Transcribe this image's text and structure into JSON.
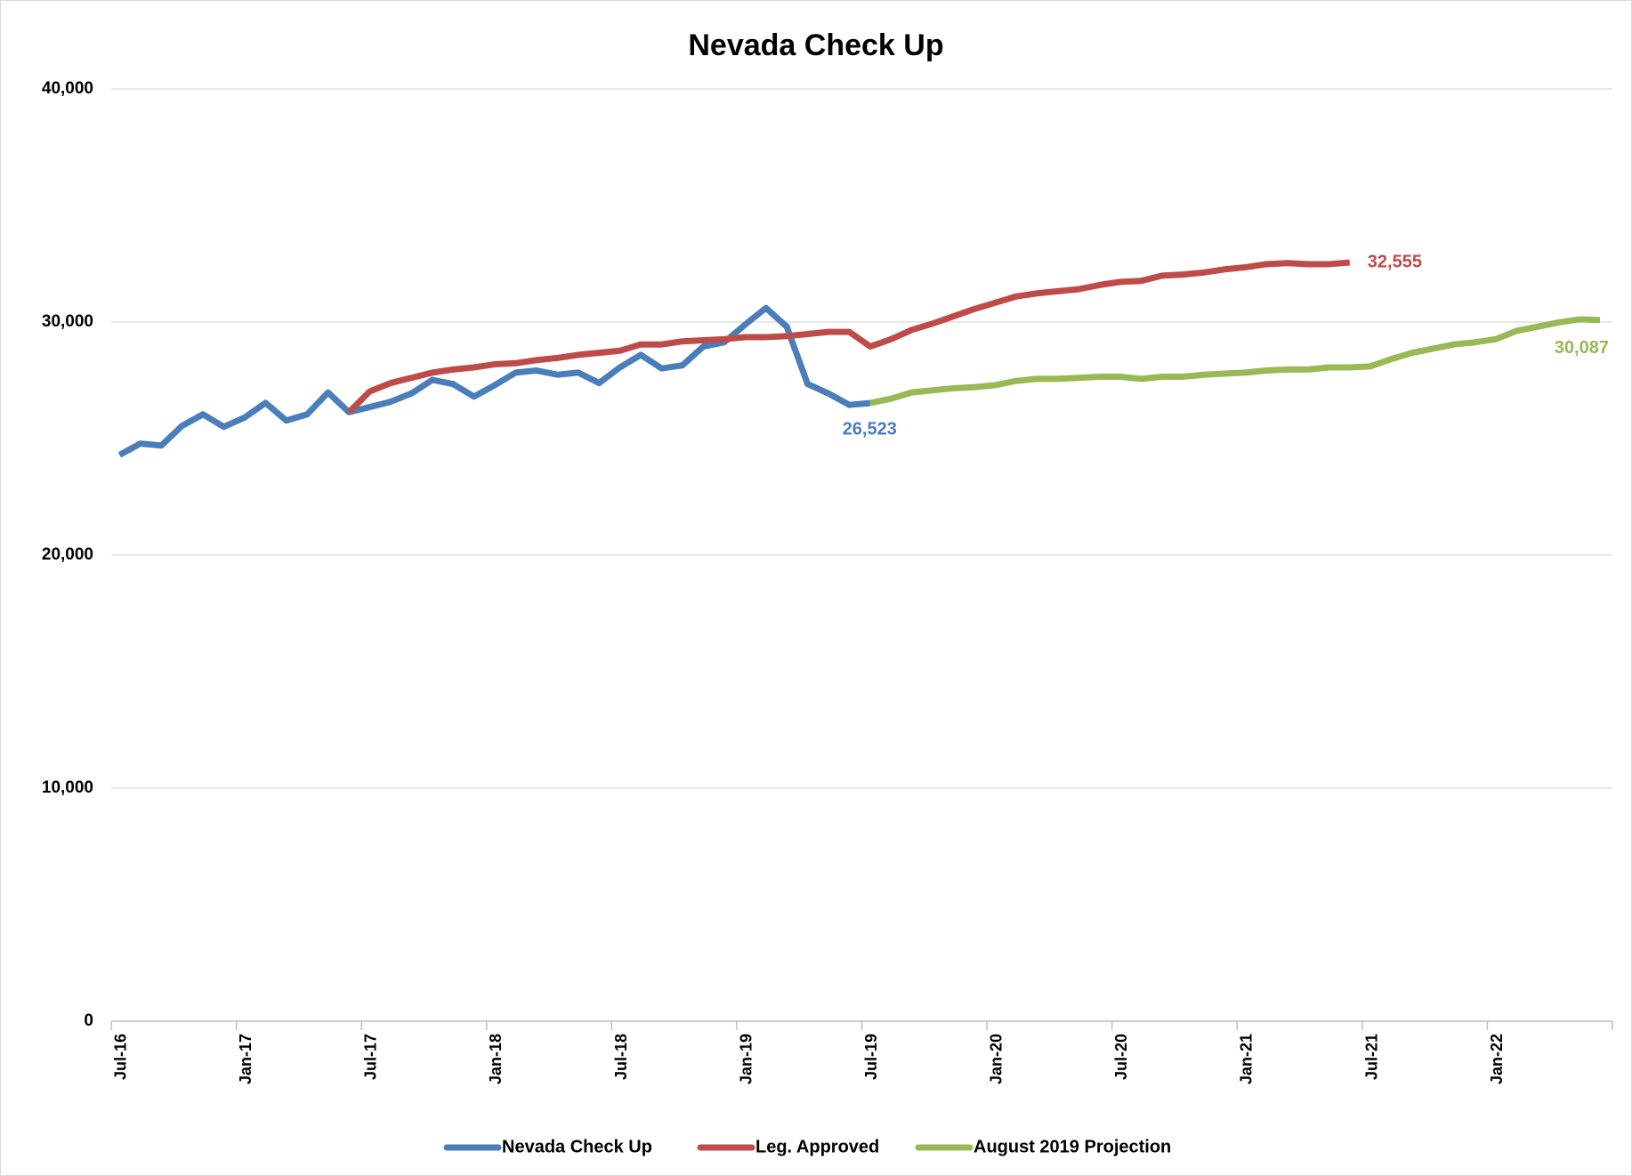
{
  "chart_data": {
    "type": "line",
    "title": "Nevada Check Up",
    "categories": [
      "Jul-16",
      null,
      null,
      null,
      null,
      null,
      "Jan-17",
      null,
      null,
      null,
      null,
      null,
      "Jul-17",
      null,
      null,
      null,
      null,
      null,
      "Jan-18",
      null,
      null,
      null,
      null,
      null,
      "Jul-18",
      null,
      null,
      null,
      null,
      null,
      "Jan-19",
      null,
      null,
      null,
      null,
      null,
      "Jul-19",
      null,
      null,
      null,
      null,
      null,
      "Jan-20",
      null,
      null,
      null,
      null,
      null,
      "Jul-20",
      null,
      null,
      null,
      null,
      null,
      "Jan-21",
      null,
      null,
      null,
      null,
      null,
      "Jul-21",
      null,
      null,
      null,
      null,
      null,
      "Jan-22",
      null,
      null,
      null,
      null,
      null
    ],
    "series": [
      {
        "name": "Nevada Check Up",
        "color": "#4a7ebb",
        "values": [
          24295,
          24787,
          24698,
          25548,
          26040,
          25503,
          25906,
          26532,
          25772,
          26040,
          26980,
          26130,
          26353,
          26577,
          26935,
          27517,
          27338,
          26801,
          27293,
          27830,
          27919,
          27740,
          27830,
          27383,
          28054,
          28591,
          28009,
          28143,
          28949,
          29128,
          29888,
          30604,
          29799,
          27338,
          26935,
          26443,
          26523,
          null,
          null,
          null,
          null,
          null,
          null,
          null,
          null,
          null,
          null,
          null,
          null,
          null,
          null,
          null,
          null,
          null,
          null,
          null,
          null,
          null,
          null,
          null,
          null,
          null,
          null,
          null,
          null,
          null,
          null,
          null,
          null,
          null,
          null,
          null
        ],
        "value_labels": [
          null,
          null,
          null,
          null,
          null,
          null,
          null,
          null,
          null,
          null,
          null,
          null,
          null,
          null,
          null,
          null,
          null,
          null,
          null,
          null,
          null,
          null,
          null,
          null,
          null,
          null,
          null,
          null,
          null,
          null,
          null,
          null,
          null,
          null,
          null,
          null,
          "26,523",
          null,
          null,
          null,
          null,
          null,
          null,
          null,
          null,
          null,
          null,
          null,
          null,
          null,
          null,
          null,
          null,
          null,
          null,
          null,
          null,
          null,
          null,
          null,
          null,
          null,
          null,
          null,
          null,
          null,
          null,
          null,
          null,
          null,
          null,
          null
        ]
      },
      {
        "name": "Leg. Approved",
        "color": "#be4b48",
        "values": [
          null,
          null,
          null,
          null,
          null,
          null,
          null,
          null,
          null,
          null,
          null,
          26130,
          27025,
          27383,
          27606,
          27830,
          27964,
          28054,
          28188,
          28233,
          28367,
          28456,
          28591,
          28680,
          28770,
          29038,
          29038,
          29172,
          29217,
          29262,
          29351,
          29351,
          29396,
          29485,
          29575,
          29575,
          28949,
          29262,
          29664,
          29933,
          30246,
          30559,
          30828,
          31096,
          31230,
          31320,
          31409,
          31588,
          31723,
          31767,
          31991,
          32036,
          32125,
          32260,
          32349,
          32483,
          32528,
          32483,
          32483,
          32555,
          null,
          null,
          null,
          null,
          null,
          null,
          null,
          null,
          null,
          null,
          null,
          null
        ],
        "value_labels": [
          null,
          null,
          null,
          null,
          null,
          null,
          null,
          null,
          null,
          null,
          null,
          null,
          null,
          null,
          null,
          null,
          null,
          null,
          null,
          null,
          null,
          null,
          null,
          null,
          null,
          null,
          null,
          null,
          null,
          null,
          null,
          null,
          null,
          null,
          null,
          null,
          null,
          null,
          null,
          null,
          null,
          null,
          null,
          null,
          null,
          null,
          null,
          null,
          null,
          null,
          null,
          null,
          null,
          null,
          null,
          null,
          null,
          null,
          null,
          "32,555",
          null,
          null,
          null,
          null,
          null,
          null,
          null,
          null,
          null,
          null,
          null,
          null
        ]
      },
      {
        "name": "August 2019 Projection",
        "color": "#98b954",
        "values": [
          null,
          null,
          null,
          null,
          null,
          null,
          null,
          null,
          null,
          null,
          null,
          null,
          null,
          null,
          null,
          null,
          null,
          null,
          null,
          null,
          null,
          null,
          null,
          null,
          null,
          null,
          null,
          null,
          null,
          null,
          null,
          null,
          null,
          null,
          null,
          null,
          26523,
          26711,
          26980,
          27069,
          27159,
          27204,
          27293,
          27472,
          27562,
          27562,
          27606,
          27651,
          27651,
          27562,
          27651,
          27651,
          27740,
          27785,
          27830,
          27919,
          27964,
          27964,
          28054,
          28054,
          28098,
          28412,
          28680,
          28859,
          29038,
          29128,
          29262,
          29620,
          29799,
          29978,
          30112,
          30087
        ],
        "value_labels": [
          null,
          null,
          null,
          null,
          null,
          null,
          null,
          null,
          null,
          null,
          null,
          null,
          null,
          null,
          null,
          null,
          null,
          null,
          null,
          null,
          null,
          null,
          null,
          null,
          null,
          null,
          null,
          null,
          null,
          null,
          null,
          null,
          null,
          null,
          null,
          null,
          null,
          null,
          null,
          null,
          null,
          null,
          null,
          null,
          null,
          null,
          null,
          null,
          null,
          null,
          null,
          null,
          null,
          null,
          null,
          null,
          null,
          null,
          null,
          null,
          null,
          null,
          null,
          null,
          null,
          null,
          null,
          null,
          null,
          null,
          null,
          "30,087"
        ]
      }
    ],
    "ylim": [
      0,
      40000
    ],
    "yticks": [
      0,
      {
        "value": 10000,
        "label": "10,000"
      },
      {
        "value": 20000,
        "label": "20,000"
      },
      {
        "value": 30000,
        "label": "30,000"
      },
      {
        "value": 40000,
        "label": "40,000"
      }
    ],
    "grid": true,
    "legend": "bottom"
  }
}
